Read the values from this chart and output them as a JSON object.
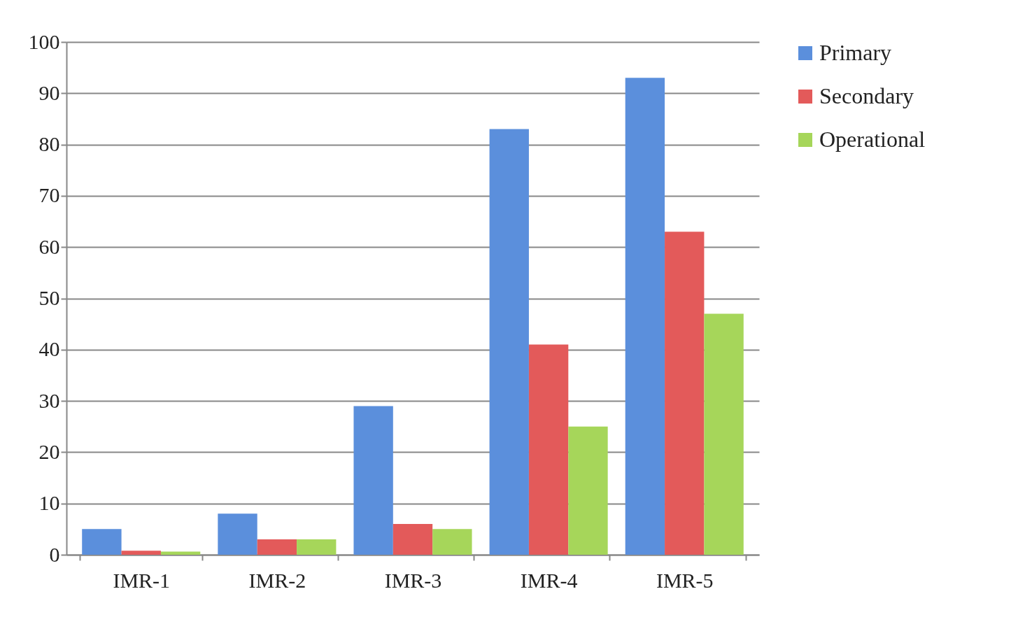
{
  "chart_data": {
    "type": "bar",
    "categories": [
      "IMR-1",
      "IMR-2",
      "IMR-3",
      "IMR-4",
      "IMR-5"
    ],
    "series": [
      {
        "name": "Primary",
        "color": "#5b8fdc",
        "values": [
          5,
          8,
          29,
          83,
          93
        ]
      },
      {
        "name": "Secondary",
        "color": "#e35a5a",
        "values": [
          0.8,
          3,
          6,
          41,
          63
        ]
      },
      {
        "name": "Operational",
        "color": "#a6d65a",
        "values": [
          0.6,
          3,
          5,
          25,
          47
        ]
      }
    ],
    "ylim": [
      0,
      100
    ],
    "yticks": [
      0,
      10,
      20,
      30,
      40,
      50,
      60,
      70,
      80,
      90,
      100
    ],
    "grid": "y",
    "legend": "right"
  }
}
